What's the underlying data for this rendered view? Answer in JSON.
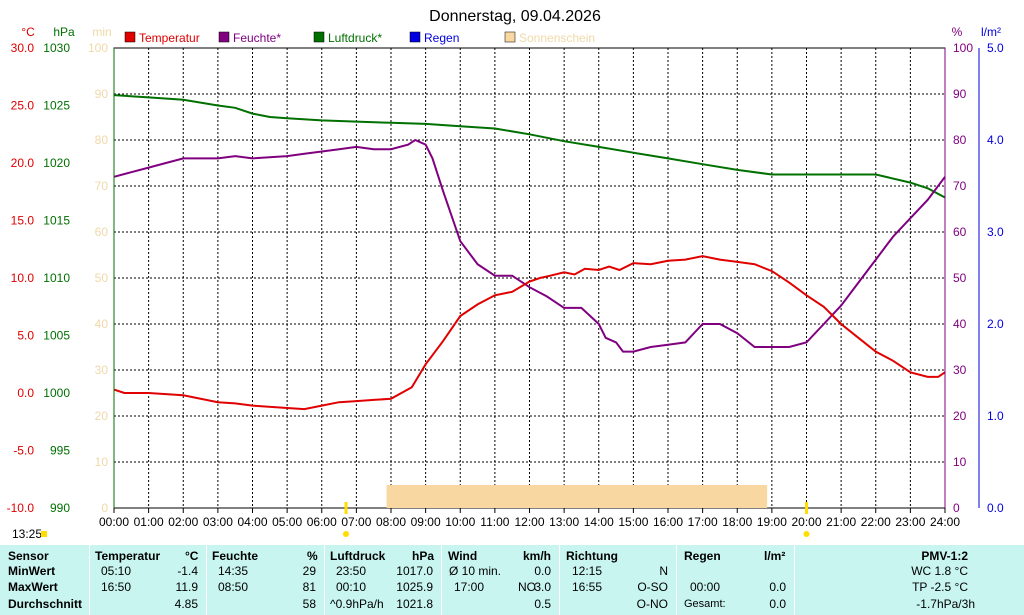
{
  "title": "Donnerstag, 09.04.2026",
  "time_label": "13:25",
  "colors": {
    "temperature": "#e00000",
    "humidity": "#800080",
    "pressure": "#007000",
    "rain": "#0000e0",
    "sunshine": "#f8d8a0",
    "min_axis": "#f0d8a8",
    "grid": "#000000",
    "stats_bg": "#c8f5f0"
  },
  "chart_data": {
    "type": "line",
    "title": "Donnerstag, 09.04.2026",
    "axis_units": {
      "temperature": "°C",
      "pressure": "hPa",
      "sunshine": "min",
      "humidity": "%",
      "rain": "l/m²"
    },
    "legend": [
      "Temperatur",
      "Feuchte*",
      "Luftdruck*",
      "Regen",
      "Sonnenschein"
    ],
    "x_ticks": [
      "00:00",
      "01:00",
      "02:00",
      "03:00",
      "04:00",
      "05:00",
      "06:00",
      "07:00",
      "08:00",
      "09:00",
      "10:00",
      "11:00",
      "12:00",
      "13:00",
      "14:00",
      "15:00",
      "16:00",
      "17:00",
      "18:00",
      "19:00",
      "20:00",
      "21:00",
      "22:00",
      "23:00",
      "24:00"
    ],
    "x_range_hours": [
      0,
      24
    ],
    "axes": {
      "temperature": {
        "range": [
          -10,
          30
        ],
        "ticks": [
          "30.0",
          "25.0",
          "20.0",
          "15.0",
          "10.0",
          "5.0",
          "0.0",
          "-5.0",
          "-10.0"
        ]
      },
      "pressure": {
        "range": [
          990,
          1030
        ],
        "ticks": [
          "1030",
          "1025",
          "1020",
          "1015",
          "1010",
          "1005",
          "1000",
          "995",
          "990"
        ]
      },
      "sunshine": {
        "range": [
          0,
          100
        ],
        "ticks": [
          "100",
          "90",
          "80",
          "70",
          "60",
          "50",
          "40",
          "30",
          "20",
          "10",
          "0"
        ]
      },
      "humidity": {
        "range": [
          0,
          100
        ],
        "ticks": [
          "100",
          "90",
          "80",
          "70",
          "60",
          "50",
          "40",
          "30",
          "20",
          "10",
          "0"
        ]
      },
      "rain": {
        "range": [
          0,
          5
        ],
        "ticks": [
          "5.0",
          "4.0",
          "3.0",
          "2.0",
          "1.0",
          "0.0"
        ]
      }
    },
    "series": [
      {
        "name": "Temperatur",
        "axis": "temperature",
        "x": [
          0,
          0.3,
          1,
          2,
          3,
          3.5,
          4,
          5,
          5.5,
          6,
          6.5,
          7,
          7.5,
          8,
          8.3,
          8.6,
          9,
          9.5,
          10,
          10.5,
          11,
          11.5,
          12,
          12.3,
          12.6,
          13,
          13.3,
          13.6,
          14,
          14.3,
          14.6,
          15,
          15.5,
          16,
          16.5,
          17,
          17.5,
          18,
          18.5,
          19,
          19.5,
          20,
          20.5,
          21,
          21.5,
          22,
          22.5,
          23,
          23.5,
          23.8,
          24
        ],
        "y": [
          0.3,
          0,
          0,
          -0.2,
          -0.8,
          -0.9,
          -1.1,
          -1.3,
          -1.4,
          -1.1,
          -0.8,
          -0.7,
          -0.6,
          -0.5,
          0,
          0.5,
          2.5,
          4.5,
          6.7,
          7.7,
          8.5,
          8.8,
          9.7,
          10,
          10.2,
          10.5,
          10.3,
          10.8,
          10.7,
          11,
          10.7,
          11.3,
          11.2,
          11.5,
          11.6,
          11.9,
          11.6,
          11.4,
          11.2,
          10.6,
          9.6,
          8.5,
          7.5,
          6,
          4.8,
          3.6,
          2.8,
          1.8,
          1.4,
          1.4,
          1.8
        ]
      },
      {
        "name": "Feuchte*",
        "axis": "humidity",
        "x": [
          0,
          0.5,
          1,
          1.5,
          2,
          3,
          3.5,
          4,
          5,
          5.5,
          6,
          6.5,
          7,
          7.5,
          8,
          8.5,
          8.7,
          9,
          9.2,
          9.5,
          10,
          10.5,
          11,
          11.5,
          12,
          12.5,
          13,
          13.5,
          14,
          14.2,
          14.5,
          14.7,
          15,
          15.5,
          16,
          16.5,
          17,
          17.5,
          18,
          18.5,
          19,
          19.5,
          20,
          20.5,
          21,
          21.5,
          22,
          22.5,
          23,
          23.5,
          24
        ],
        "y": [
          72,
          73,
          74,
          75,
          76,
          76,
          76.5,
          76,
          76.5,
          77,
          77.5,
          78,
          78.5,
          78,
          78,
          79,
          80,
          79,
          76,
          69,
          58,
          53,
          50.5,
          50.5,
          48,
          46,
          43.5,
          43.5,
          40,
          37,
          36,
          34,
          34,
          35,
          35.5,
          36,
          40,
          40,
          38,
          35,
          35,
          35,
          36,
          40,
          44,
          49,
          54,
          59,
          63,
          67,
          72
        ]
      },
      {
        "name": "Luftdruck*",
        "axis": "pressure",
        "x": [
          0,
          1,
          2,
          3,
          3.5,
          4,
          4.5,
          5,
          6,
          7,
          8,
          9,
          10,
          11,
          12,
          13,
          14,
          15,
          16,
          17,
          18,
          19,
          20,
          21,
          22,
          23,
          23.5,
          24
        ],
        "y": [
          1025.9,
          1025.7,
          1025.5,
          1025.0,
          1024.8,
          1024.3,
          1024.0,
          1023.9,
          1023.7,
          1023.6,
          1023.5,
          1023.4,
          1023.2,
          1023.0,
          1022.5,
          1021.9,
          1021.4,
          1020.9,
          1020.4,
          1019.9,
          1019.4,
          1019.0,
          1019.0,
          1019.0,
          1019.0,
          1018.3,
          1017.8,
          1017.0
        ]
      },
      {
        "name": "Sonnenschein",
        "axis": "sunshine",
        "type": "bar_fill",
        "from_hour": 7.9,
        "to_hour": 18.85,
        "level": 5
      }
    ],
    "markers": [
      {
        "label": "Sonnenaufgang",
        "hour": 6.7
      },
      {
        "label": "Sonnenuntergang",
        "hour": 20.0
      }
    ]
  },
  "stats": {
    "row_labels": [
      "Sensor",
      "MinWert",
      "MaxWert",
      "Durchschnitt"
    ],
    "temperature": {
      "header": "Temperatur",
      "unit": "°C",
      "min_time": "05:10",
      "min_val": "-1.4",
      "max_time": "16:50",
      "max_val": "11.9",
      "avg": "4.85"
    },
    "humidity": {
      "header": "Feuchte",
      "unit": "%",
      "min_time": "14:35",
      "min_val": "29",
      "max_time": "08:50",
      "max_val": "81",
      "avg": "58"
    },
    "pressure": {
      "header": "Luftdruck",
      "unit": "hPa",
      "min_time": "23:50",
      "min_val": "1017.0",
      "max_time": "00:10",
      "max_val": "1025.9",
      "trend": "^0.9hPa/h",
      "avg": "1021.8"
    },
    "wind": {
      "header": "Wind",
      "unit": "km/h",
      "min_label": "Ø 10 min.",
      "min_val": "0.0",
      "max_time": "17:00",
      "max_dir": "NO",
      "max_val": "3.0",
      "avg": "0.5"
    },
    "direction": {
      "header": "Richtung",
      "min_time": "12:15",
      "min_val": "N",
      "max_time": "16:55",
      "max_val": "O-SO",
      "avg": "O-NO"
    },
    "rain": {
      "header": "Regen",
      "unit": "l/m²",
      "max_time": "00:00",
      "max_val": "0.0",
      "total_label": "Gesamt:",
      "total_val": "0.0"
    },
    "pmv": {
      "header": "PMV-1:2",
      "wc": "WC 1.8 °C",
      "tp": "TP -2.5 °C",
      "trend": "-1.7hPa/3h"
    }
  }
}
